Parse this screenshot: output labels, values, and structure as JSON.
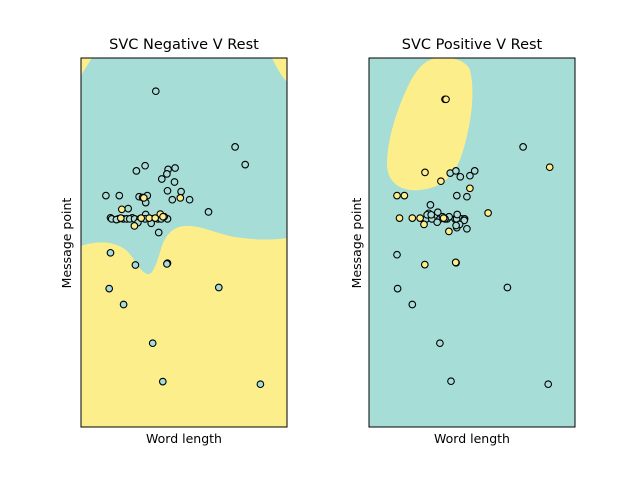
{
  "chart_data": [
    {
      "type": "scatter",
      "title": "SVC Negative V Rest",
      "xlabel": "Word length",
      "ylabel": "Message point",
      "xticks": "none",
      "yticks": "none",
      "decision_region_colors": {
        "rest": "#a6ddd6",
        "class": "#fdee8c"
      },
      "series": [
        {
          "name": "",
          "color": "#a6ddd6",
          "points": [
            [
              0.363,
              0.09
            ],
            [
              0.748,
              0.241
            ],
            [
              0.797,
              0.289
            ],
            [
              0.311,
              0.292
            ],
            [
              0.269,
              0.306
            ],
            [
              0.423,
              0.302
            ],
            [
              0.457,
              0.298
            ],
            [
              0.417,
              0.314
            ],
            [
              0.392,
              0.328
            ],
            [
              0.454,
              0.336
            ],
            [
              0.322,
              0.373
            ],
            [
              0.42,
              0.36
            ],
            [
              0.121,
              0.373
            ],
            [
              0.186,
              0.373
            ],
            [
              0.282,
              0.376
            ],
            [
              0.299,
              0.378
            ],
            [
              0.486,
              0.362
            ],
            [
              0.527,
              0.384
            ],
            [
              0.314,
              0.392
            ],
            [
              0.443,
              0.384
            ],
            [
              0.229,
              0.408
            ],
            [
              0.143,
              0.433
            ],
            [
              0.619,
              0.417
            ],
            [
              0.314,
              0.424
            ],
            [
              0.249,
              0.433
            ],
            [
              0.149,
              0.436
            ],
            [
              0.182,
              0.436
            ],
            [
              0.205,
              0.436
            ],
            [
              0.222,
              0.436
            ],
            [
              0.237,
              0.436
            ],
            [
              0.26,
              0.436
            ],
            [
              0.286,
              0.436
            ],
            [
              0.311,
              0.436
            ],
            [
              0.346,
              0.436
            ],
            [
              0.374,
              0.436
            ],
            [
              0.389,
              0.436
            ],
            [
              0.42,
              0.436
            ],
            [
              0.172,
              0.438
            ],
            [
              0.276,
              0.446
            ],
            [
              0.341,
              0.448
            ],
            [
              0.377,
              0.473
            ],
            [
              0.143,
              0.528
            ],
            [
              0.264,
              0.561
            ],
            [
              0.42,
              0.556
            ],
            [
              0.417,
              0.558
            ],
            [
              0.137,
              0.625
            ],
            [
              0.207,
              0.668
            ],
            [
              0.669,
              0.622
            ],
            [
              0.348,
              0.773
            ],
            [
              0.397,
              0.877
            ],
            [
              0.871,
              0.884
            ]
          ]
        },
        {
          "name": "",
          "color": "#fdee8c",
          "points": [
            [
              0.305,
              0.379
            ],
            [
              0.482,
              0.379
            ],
            [
              0.198,
              0.41
            ],
            [
              0.385,
              0.423
            ],
            [
              0.404,
              0.43
            ],
            [
              0.193,
              0.434
            ],
            [
              0.292,
              0.434
            ],
            [
              0.331,
              0.434
            ],
            [
              0.36,
              0.434
            ],
            [
              0.398,
              0.43
            ],
            [
              0.259,
              0.455
            ]
          ]
        }
      ]
    },
    {
      "type": "scatter",
      "title": "SVC Positive V Rest",
      "xlabel": "Word length",
      "ylabel": "Message point",
      "xticks": "none",
      "yticks": "none",
      "decision_region_colors": {
        "rest": "#a6ddd6",
        "class": "#fdee8c"
      },
      "series": [
        {
          "name": "",
          "color": "#a6ddd6",
          "points": [
            [
              0.369,
              0.112
            ],
            [
              0.748,
              0.241
            ],
            [
              0.394,
              0.312
            ],
            [
              0.422,
              0.306
            ],
            [
              0.443,
              0.322
            ],
            [
              0.513,
              0.306
            ],
            [
              0.49,
              0.319
            ],
            [
              0.426,
              0.373
            ],
            [
              0.475,
              0.376
            ],
            [
              0.298,
              0.398
            ],
            [
              0.29,
              0.421
            ],
            [
              0.334,
              0.418
            ],
            [
              0.277,
              0.436
            ],
            [
              0.305,
              0.436
            ],
            [
              0.344,
              0.436
            ],
            [
              0.379,
              0.436
            ],
            [
              0.418,
              0.436
            ],
            [
              0.448,
              0.436
            ],
            [
              0.464,
              0.436
            ],
            [
              0.425,
              0.436
            ],
            [
              0.282,
              0.425
            ],
            [
              0.302,
              0.425
            ],
            [
              0.357,
              0.43
            ],
            [
              0.389,
              0.43
            ],
            [
              0.428,
              0.424
            ],
            [
              0.462,
              0.44
            ],
            [
              0.369,
              0.436
            ],
            [
              0.331,
              0.445
            ],
            [
              0.426,
              0.46
            ],
            [
              0.475,
              0.463
            ],
            [
              0.44,
              0.451
            ],
            [
              0.423,
              0.454
            ],
            [
              0.136,
              0.533
            ],
            [
              0.423,
              0.555
            ],
            [
              0.672,
              0.622
            ],
            [
              0.139,
              0.625
            ],
            [
              0.21,
              0.668
            ],
            [
              0.344,
              0.773
            ],
            [
              0.398,
              0.876
            ],
            [
              0.87,
              0.884
            ]
          ]
        },
        {
          "name": "",
          "color": "#fdee8c",
          "points": [
            [
              0.374,
              0.112
            ],
            [
              0.272,
              0.31
            ],
            [
              0.349,
              0.334
            ],
            [
              0.877,
              0.296
            ],
            [
              0.49,
              0.353
            ],
            [
              0.136,
              0.373
            ],
            [
              0.172,
              0.373
            ],
            [
              0.578,
              0.42
            ],
            [
              0.148,
              0.434
            ],
            [
              0.21,
              0.434
            ],
            [
              0.248,
              0.434
            ],
            [
              0.362,
              0.434
            ],
            [
              0.267,
              0.451
            ],
            [
              0.388,
              0.47
            ],
            [
              0.271,
              0.56
            ],
            [
              0.421,
              0.554
            ]
          ]
        }
      ]
    }
  ]
}
